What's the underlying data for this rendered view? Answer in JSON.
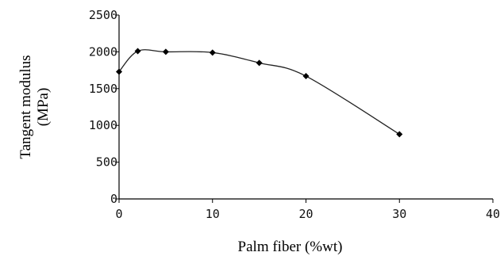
{
  "chart_data": {
    "type": "line",
    "xlabel": "Palm fiber (%wt)",
    "ylabel_lines": [
      "Tangent modulus",
      "(MPa)"
    ],
    "xlim": [
      0,
      40
    ],
    "ylim": [
      0,
      2500
    ],
    "x_ticks": [
      0,
      10,
      20,
      30,
      40
    ],
    "y_ticks": [
      0,
      500,
      1000,
      1500,
      2000,
      2500
    ],
    "grid": false,
    "series": [
      {
        "x": [
          0,
          2,
          5,
          10,
          15,
          20,
          30
        ],
        "y": [
          1730,
          2010,
          2000,
          1990,
          1850,
          1670,
          880
        ],
        "marker": "diamond",
        "color": "#000000"
      }
    ]
  }
}
